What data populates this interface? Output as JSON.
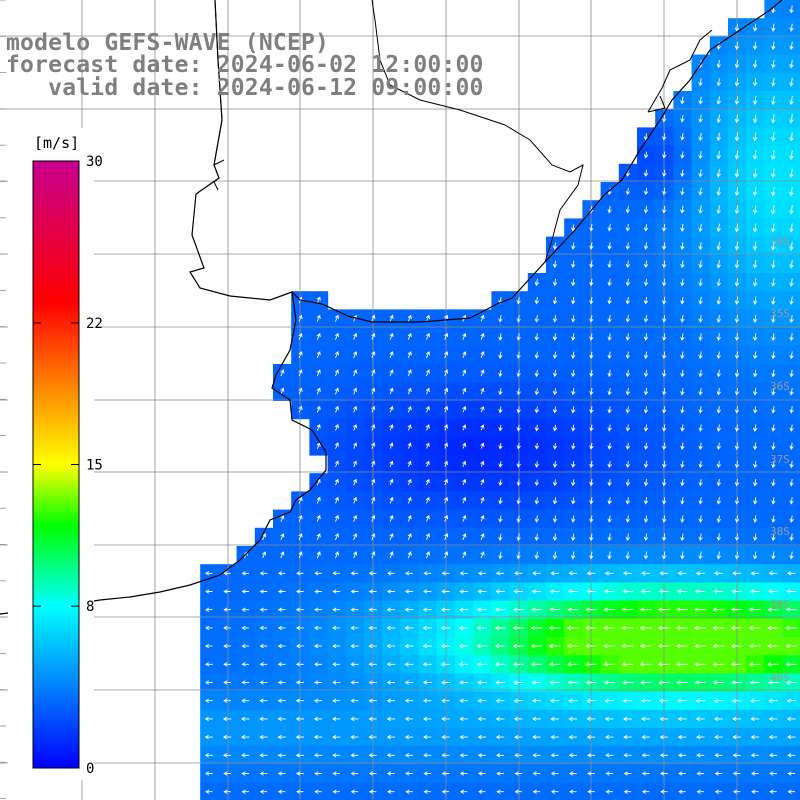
{
  "title": {
    "model": "modelo GEFS-WAVE (NCEP)",
    "forecast": "forecast date: 2024-06-02 12:00:00",
    "valid": "   valid date: 2024-06-12 09:00:00"
  },
  "colorbar": {
    "unit": "[m/s]",
    "ticks": [
      "30",
      "22",
      "15",
      "8",
      "0"
    ],
    "tick_values": [
      30,
      22,
      15,
      8,
      0
    ],
    "range": [
      0,
      30
    ],
    "stops": [
      {
        "v": 0,
        "c": "#0000ff"
      },
      {
        "v": 4,
        "c": "#0080ff"
      },
      {
        "v": 8,
        "c": "#00ffff"
      },
      {
        "v": 12,
        "c": "#00ff00"
      },
      {
        "v": 15,
        "c": "#ffff00"
      },
      {
        "v": 19,
        "c": "#ff8000"
      },
      {
        "v": 23,
        "c": "#ff0000"
      },
      {
        "v": 30,
        "c": "#c80090"
      }
    ]
  },
  "lat_labels": [
    "34S",
    "35S",
    "36S",
    "37S",
    "38S",
    "39S",
    "40S"
  ],
  "colors": {
    "grid": "#8c8c8c",
    "coast": "#000000",
    "arrow": "#ffffff",
    "label": "#9a9a9a",
    "title": "#7f7f7f"
  }
}
